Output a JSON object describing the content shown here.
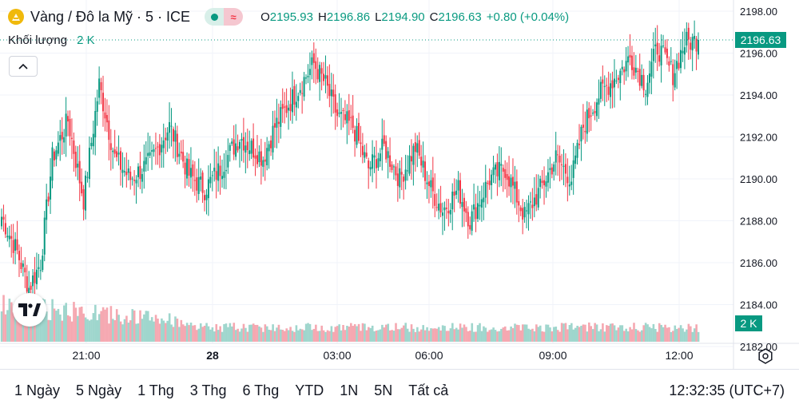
{
  "symbol": {
    "title": "Vàng / Đô la Mỹ · 5 · ICE",
    "open_label": "O",
    "open": "2195.93",
    "high_label": "H",
    "high": "2196.86",
    "low_label": "L",
    "low": "2194.90",
    "close_label": "C",
    "close": "2196.63",
    "change": "+0.80 (+0.04%)"
  },
  "volume": {
    "label": "Khối lượng",
    "value": "2 K",
    "axis_label": "2 K"
  },
  "price_axis": {
    "ticks": [
      "2198.00",
      "2196.00",
      "2194.00",
      "2192.00",
      "2190.00",
      "2188.00",
      "2186.00",
      "2184.00",
      "2182.00"
    ],
    "current_price": "2196.63"
  },
  "time_axis": [
    "21:00",
    "28",
    "03:00",
    "06:00",
    "09:00",
    "12:00"
  ],
  "colors": {
    "up": "#089981",
    "down": "#f23645",
    "vol_up": "#9fd6cd",
    "vol_down": "#f5a8b1",
    "accent": "#089981"
  },
  "icons": {
    "symbol": "gold-coin-icon",
    "collapse": "chevron-up-icon",
    "logo": "tradingview-logo-icon",
    "settings": "settings-gear-icon"
  },
  "ranges": [
    "1 Ngày",
    "5 Ngày",
    "1 Thg",
    "3 Thg",
    "6 Thg",
    "YTD",
    "1N",
    "5N",
    "Tất cả"
  ],
  "clock": "12:32:35 (UTC+7)",
  "chart_data": {
    "type": "candlestick",
    "title": "Vàng / Đô la Mỹ · 5 · ICE",
    "ylim": [
      2182,
      2198
    ],
    "x_tick_labels": [
      "21:00",
      "28",
      "03:00",
      "06:00",
      "09:00",
      "12:00"
    ],
    "close_anchors": [
      [
        0,
        2188.2
      ],
      [
        8,
        2186.5
      ],
      [
        14,
        2184.8
      ],
      [
        20,
        2186.0
      ],
      [
        26,
        2191.0
      ],
      [
        34,
        2192.8
      ],
      [
        42,
        2189.0
      ],
      [
        50,
        2194.5
      ],
      [
        58,
        2191.0
      ],
      [
        66,
        2190.0
      ],
      [
        76,
        2190.8
      ],
      [
        86,
        2192.5
      ],
      [
        96,
        2190.2
      ],
      [
        104,
        2189.5
      ],
      [
        112,
        2190.5
      ],
      [
        122,
        2192.0
      ],
      [
        134,
        2191.0
      ],
      [
        140,
        2192.5
      ],
      [
        150,
        2194.0
      ],
      [
        160,
        2195.5
      ],
      [
        166,
        2194.5
      ],
      [
        172,
        2193.0
      ],
      [
        180,
        2192.5
      ],
      [
        188,
        2190.5
      ],
      [
        196,
        2191.5
      ],
      [
        204,
        2190.0
      ],
      [
        212,
        2191.5
      ],
      [
        220,
        2189.5
      ],
      [
        226,
        2188.5
      ],
      [
        234,
        2189.5
      ],
      [
        240,
        2188.0
      ],
      [
        250,
        2190.0
      ],
      [
        258,
        2190.5
      ],
      [
        268,
        2188.2
      ],
      [
        276,
        2189.5
      ],
      [
        284,
        2191.0
      ],
      [
        292,
        2190.0
      ],
      [
        298,
        2192.5
      ],
      [
        306,
        2194.0
      ],
      [
        316,
        2195.0
      ],
      [
        322,
        2195.8
      ],
      [
        330,
        2194.5
      ],
      [
        336,
        2196.3
      ],
      [
        344,
        2195.0
      ],
      [
        350,
        2196.5
      ],
      [
        357,
        2196.63
      ]
    ],
    "volume_profile": {
      "early_high": true,
      "unit": "K",
      "last": 2
    }
  }
}
